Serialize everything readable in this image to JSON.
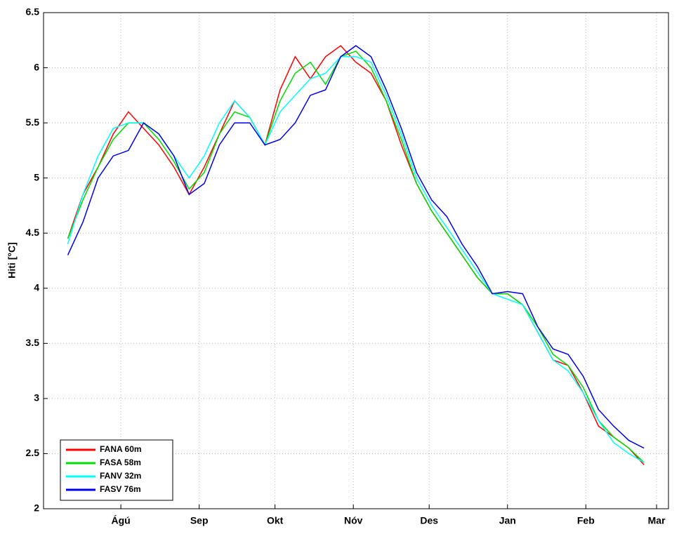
{
  "chart_data": {
    "type": "line",
    "ylabel": "Hiti [°C]",
    "x": [
      -21,
      -15,
      -9,
      -3,
      3,
      9,
      15,
      21,
      27,
      33,
      39,
      45,
      51,
      57,
      63,
      69,
      75,
      81,
      87,
      93,
      99,
      105,
      111,
      117,
      123,
      129,
      135,
      141,
      147,
      153,
      159,
      165,
      171,
      177,
      183,
      189,
      195,
      201,
      207
    ],
    "xlim": [
      -30.6,
      216.7
    ],
    "xticks": [
      {
        "value": 0,
        "label": "Ágú"
      },
      {
        "value": 31,
        "label": "Sep"
      },
      {
        "value": 61,
        "label": "Okt"
      },
      {
        "value": 92,
        "label": "Nóv"
      },
      {
        "value": 122,
        "label": "Des"
      },
      {
        "value": 153,
        "label": "Jan"
      },
      {
        "value": 184,
        "label": "Feb"
      },
      {
        "value": 212,
        "label": "Mar"
      }
    ],
    "ylim": [
      2,
      6.5
    ],
    "yticks": [
      2,
      2.5,
      3,
      3.5,
      4,
      4.5,
      5,
      5.5,
      6,
      6.5
    ],
    "grid": true,
    "legend": "lower left",
    "series": [
      {
        "name": "FANA 60m",
        "color": "#ff0000",
        "values": [
          4.45,
          4.85,
          5.1,
          5.4,
          5.6,
          5.45,
          5.3,
          5.1,
          4.85,
          5.1,
          5.4,
          5.7,
          5.55,
          5.3,
          5.8,
          6.1,
          5.9,
          6.1,
          6.2,
          6.05,
          5.95,
          5.7,
          5.3,
          4.95,
          4.7,
          4.5,
          4.3,
          4.1,
          3.95,
          3.95,
          3.85,
          3.6,
          3.35,
          3.3,
          3.05,
          2.75,
          2.65,
          2.55,
          2.4
        ]
      },
      {
        "name": "FASA 58m",
        "color": "#00dd00",
        "values": [
          4.45,
          4.8,
          5.1,
          5.35,
          5.5,
          5.5,
          5.35,
          5.15,
          4.9,
          5.05,
          5.4,
          5.6,
          5.55,
          5.3,
          5.7,
          5.95,
          6.05,
          5.85,
          6.1,
          6.15,
          6.0,
          5.7,
          5.35,
          4.95,
          4.7,
          4.5,
          4.3,
          4.1,
          3.95,
          3.95,
          3.85,
          3.65,
          3.4,
          3.3,
          3.1,
          2.8,
          2.65,
          2.55,
          2.42
        ]
      },
      {
        "name": "FANV 32m",
        "color": "#00ffff",
        "values": [
          4.4,
          4.85,
          5.2,
          5.45,
          5.5,
          5.5,
          5.4,
          5.2,
          5.0,
          5.2,
          5.5,
          5.7,
          5.55,
          5.3,
          5.6,
          5.75,
          5.9,
          5.95,
          6.1,
          6.1,
          6.05,
          5.75,
          5.4,
          5.0,
          4.75,
          4.55,
          4.35,
          4.15,
          3.95,
          3.9,
          3.85,
          3.6,
          3.35,
          3.25,
          3.05,
          2.8,
          2.6,
          2.5,
          2.42
        ]
      },
      {
        "name": "FASV 76m",
        "color": "#0000ee",
        "values": [
          4.3,
          4.6,
          5.0,
          5.2,
          5.25,
          5.5,
          5.4,
          5.2,
          4.85,
          4.95,
          5.3,
          5.5,
          5.5,
          5.3,
          5.35,
          5.5,
          5.75,
          5.8,
          6.1,
          6.2,
          6.1,
          5.8,
          5.45,
          5.05,
          4.8,
          4.65,
          4.4,
          4.2,
          3.95,
          3.97,
          3.95,
          3.65,
          3.45,
          3.4,
          3.2,
          2.9,
          2.75,
          2.62,
          2.55
        ]
      }
    ]
  }
}
